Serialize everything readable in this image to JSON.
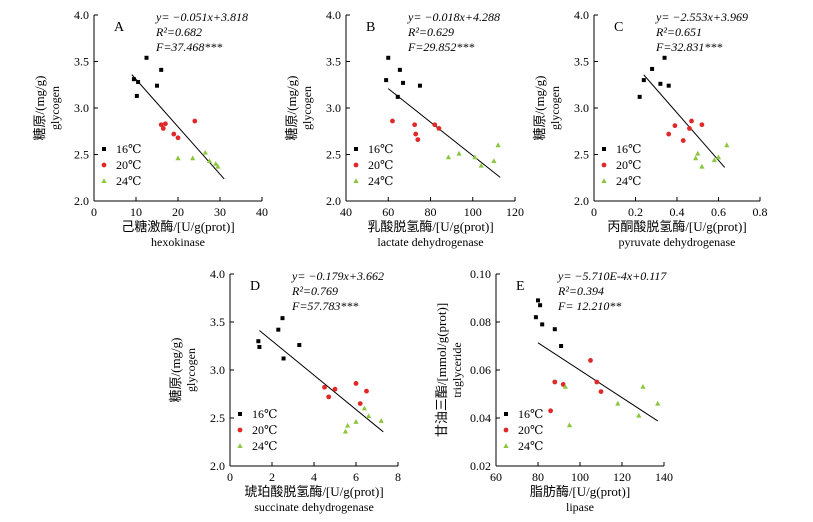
{
  "figure": {
    "legend_labels": [
      "16℃",
      "20℃",
      "24℃"
    ],
    "colors": {
      "16": "#000000",
      "20": "#e02828",
      "24": "#8cc63f"
    }
  },
  "chart_data": [
    {
      "type": "scatter",
      "panel": "A",
      "xlabel_cn": "己糖激酶/[U/g(prot)]",
      "xlabel_en": "hexokinase",
      "ylabel_cn": "糖原/(mg/g)",
      "ylabel_en": "glycogen",
      "xlim": [
        0,
        40
      ],
      "ylim": [
        2.0,
        4.0
      ],
      "xticks": [
        "0",
        "10",
        "20",
        "30",
        "40"
      ],
      "yticks": [
        "2.0",
        "2.5",
        "3.0",
        "3.5",
        "4.0"
      ],
      "equation": "y= −0.051x+3.818",
      "r2": "R²=0.682",
      "f": "F=37.468***",
      "series": [
        {
          "name": "16℃",
          "marker": "square",
          "points": [
            [
              9.5,
              3.31
            ],
            [
              10.2,
              3.13
            ],
            [
              10.5,
              3.28
            ],
            [
              12.5,
              3.54
            ],
            [
              15.0,
              3.24
            ],
            [
              16.0,
              3.41
            ]
          ]
        },
        {
          "name": "20℃",
          "marker": "circle",
          "points": [
            [
              16.0,
              2.82
            ],
            [
              16.5,
              2.78
            ],
            [
              17.0,
              2.83
            ],
            [
              19.0,
              2.72
            ],
            [
              20.0,
              2.68
            ],
            [
              24.0,
              2.86
            ]
          ]
        },
        {
          "name": "24℃",
          "marker": "triangle",
          "points": [
            [
              20.0,
              2.46
            ],
            [
              23.5,
              2.46
            ],
            [
              26.5,
              2.52
            ],
            [
              27.5,
              2.43
            ],
            [
              29.0,
              2.4
            ],
            [
              29.5,
              2.37
            ]
          ]
        }
      ],
      "fit": {
        "x": [
          9,
          31
        ]
      }
    },
    {
      "type": "scatter",
      "panel": "B",
      "xlabel_cn": "乳酸脱氢酶/[U/g(prot)]",
      "xlabel_en": "lactate dehydrogenase",
      "ylabel_cn": "糖原/(mg/g)",
      "ylabel_en": "glycogen",
      "xlim": [
        40,
        120
      ],
      "ylim": [
        2.0,
        4.0
      ],
      "xticks": [
        "40",
        "60",
        "80",
        "100",
        "120"
      ],
      "yticks": [
        "2.0",
        "2.5",
        "3.0",
        "3.5",
        "4.0"
      ],
      "equation": "y= −0.018x+4.288",
      "r2": "R²=0.629",
      "f": "F=29.852***",
      "series": [
        {
          "name": "16℃",
          "marker": "square",
          "points": [
            [
              59.0,
              3.3
            ],
            [
              60.0,
              3.54
            ],
            [
              64.5,
              3.12
            ],
            [
              65.5,
              3.41
            ],
            [
              67.0,
              3.27
            ],
            [
              75.0,
              3.24
            ]
          ]
        },
        {
          "name": "20℃",
          "marker": "circle",
          "points": [
            [
              62.0,
              2.86
            ],
            [
              72.5,
              2.82
            ],
            [
              73.0,
              2.72
            ],
            [
              74.0,
              2.66
            ],
            [
              82.0,
              2.82
            ],
            [
              84.0,
              2.78
            ]
          ]
        },
        {
          "name": "24℃",
          "marker": "triangle",
          "points": [
            [
              88.5,
              2.47
            ],
            [
              93.5,
              2.51
            ],
            [
              101.0,
              2.47
            ],
            [
              104.0,
              2.38
            ],
            [
              110.0,
              2.43
            ],
            [
              112.0,
              2.6
            ]
          ]
        }
      ],
      "fit": {
        "x": [
          60,
          113
        ]
      }
    },
    {
      "type": "scatter",
      "panel": "C",
      "xlabel_cn": "丙酮酸脱氢酶/[U/g(prot)]",
      "xlabel_en": "pyruvate dehydrogenase",
      "ylabel_cn": "糖原/(mg/g)",
      "ylabel_en": "glycogen",
      "xlim": [
        0,
        0.8
      ],
      "ylim": [
        2.0,
        4.0
      ],
      "xticks": [
        "0",
        "0.2",
        "0.4",
        "0.6",
        "0.8"
      ],
      "yticks": [
        "2.0",
        "2.5",
        "3.0",
        "3.5",
        "4.0"
      ],
      "equation": "y= −2.553x+3.969",
      "r2": "R²=0.651",
      "f": "F=32.831***",
      "series": [
        {
          "name": "16℃",
          "marker": "square",
          "points": [
            [
              0.22,
              3.12
            ],
            [
              0.24,
              3.3
            ],
            [
              0.28,
              3.42
            ],
            [
              0.32,
              3.26
            ],
            [
              0.34,
              3.54
            ],
            [
              0.36,
              3.24
            ]
          ]
        },
        {
          "name": "20℃",
          "marker": "circle",
          "points": [
            [
              0.36,
              2.72
            ],
            [
              0.39,
              2.81
            ],
            [
              0.43,
              2.65
            ],
            [
              0.46,
              2.78
            ],
            [
              0.47,
              2.86
            ],
            [
              0.52,
              2.82
            ]
          ]
        },
        {
          "name": "24℃",
          "marker": "triangle",
          "points": [
            [
              0.49,
              2.46
            ],
            [
              0.5,
              2.51
            ],
            [
              0.52,
              2.37
            ],
            [
              0.58,
              2.44
            ],
            [
              0.6,
              2.47
            ],
            [
              0.64,
              2.6
            ]
          ]
        }
      ],
      "fit": {
        "x": [
          0.24,
          0.63
        ]
      }
    },
    {
      "type": "scatter",
      "panel": "D",
      "xlabel_cn": "琥珀酸脱氢酶/[U/g(prot)]",
      "xlabel_en": "succinate dehydrogenase",
      "ylabel_cn": "糖原/(mg/g)",
      "ylabel_en": "glycogen",
      "xlim": [
        0,
        8
      ],
      "ylim": [
        2.0,
        4.0
      ],
      "xticks": [
        "0",
        "2",
        "4",
        "6",
        "8"
      ],
      "yticks": [
        "2.0",
        "2.5",
        "3.0",
        "3.5",
        "4.0"
      ],
      "equation": "y= −0.179x+3.662",
      "r2": "R²=0.769",
      "f": "F=57.783***",
      "series": [
        {
          "name": "16℃",
          "marker": "square",
          "points": [
            [
              1.35,
              3.3
            ],
            [
              1.4,
              3.24
            ],
            [
              2.3,
              3.42
            ],
            [
              2.5,
              3.54
            ],
            [
              2.55,
              3.12
            ],
            [
              3.3,
              3.26
            ]
          ]
        },
        {
          "name": "20℃",
          "marker": "circle",
          "points": [
            [
              4.5,
              2.82
            ],
            [
              4.7,
              2.72
            ],
            [
              5.0,
              2.8
            ],
            [
              6.0,
              2.86
            ],
            [
              6.2,
              2.65
            ],
            [
              6.5,
              2.78
            ]
          ]
        },
        {
          "name": "24℃",
          "marker": "triangle",
          "points": [
            [
              5.5,
              2.36
            ],
            [
              5.6,
              2.42
            ],
            [
              6.0,
              2.46
            ],
            [
              6.4,
              2.6
            ],
            [
              6.6,
              2.52
            ],
            [
              7.2,
              2.47
            ]
          ]
        }
      ],
      "fit": {
        "x": [
          1.4,
          7.3
        ]
      }
    },
    {
      "type": "scatter",
      "panel": "E",
      "xlabel_cn": "脂肪酶/[U/g(prot)]",
      "xlabel_en": "lipase",
      "ylabel_cn": "甘油三酯/[mmol/g(prot)]",
      "ylabel_en": "triglyceride",
      "xlim": [
        60,
        140
      ],
      "ylim": [
        0.02,
        0.1
      ],
      "xticks": [
        "60",
        "80",
        "100",
        "120",
        "140"
      ],
      "yticks": [
        "0.02",
        "0.04",
        "0.06",
        "0.08",
        "0.10"
      ],
      "equation": "y= −5.710E-4x+0.117",
      "r2": "R²=0.394",
      "f": "F= 12.210**",
      "series": [
        {
          "name": "16℃",
          "marker": "square",
          "points": [
            [
              79.0,
              0.082
            ],
            [
              80.0,
              0.089
            ],
            [
              81.0,
              0.087
            ],
            [
              82.0,
              0.079
            ],
            [
              88.0,
              0.077
            ],
            [
              91.0,
              0.07
            ]
          ]
        },
        {
          "name": "20℃",
          "marker": "circle",
          "points": [
            [
              86.0,
              0.043
            ],
            [
              88.0,
              0.055
            ],
            [
              92.0,
              0.054
            ],
            [
              105.0,
              0.064
            ],
            [
              108.0,
              0.055
            ],
            [
              110.0,
              0.051
            ]
          ]
        },
        {
          "name": "24℃",
          "marker": "triangle",
          "points": [
            [
              93.0,
              0.053
            ],
            [
              95.0,
              0.037
            ],
            [
              118.0,
              0.046
            ],
            [
              128.0,
              0.041
            ],
            [
              130.0,
              0.053
            ],
            [
              137.0,
              0.046
            ]
          ]
        }
      ],
      "fit": {
        "x": [
          80,
          137
        ]
      }
    }
  ]
}
